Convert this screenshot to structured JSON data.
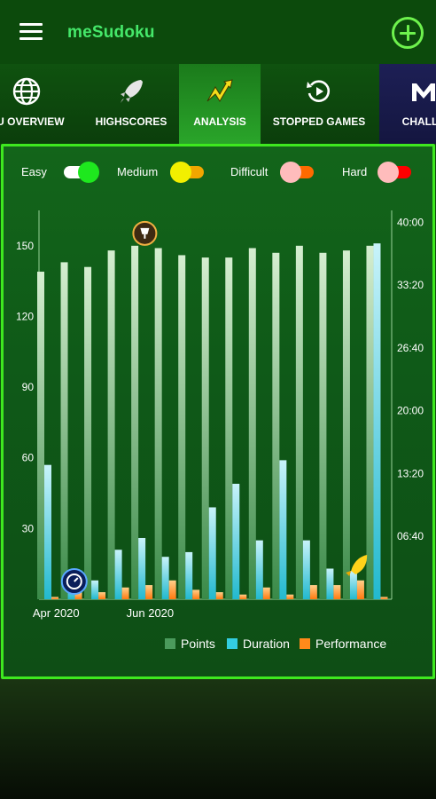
{
  "app": {
    "title": "meSudoku",
    "menu_icon": "hamburger-menu-icon",
    "add_icon": "plus-circle-icon"
  },
  "tabs": [
    {
      "label": "KU OVERVIEW",
      "icon": "globe-icon"
    },
    {
      "label": "HIGHSCORES",
      "icon": "rocket-icon"
    },
    {
      "label": "ANALYSIS",
      "icon": "lightning-chart-icon",
      "active": true
    },
    {
      "label": "STOPPED GAMES",
      "icon": "replay-icon"
    },
    {
      "label": "CHALLE",
      "icon": "challenge-icon"
    }
  ],
  "filters": [
    {
      "label": "Easy",
      "on": true,
      "track_color": "#ffffff",
      "knob_color": "#1ee81e"
    },
    {
      "label": "Medium",
      "on": true,
      "track_color": "#f1a600",
      "knob_color": "#f2ef00"
    },
    {
      "label": "Difficult",
      "on": false,
      "track_color": "#ff6a00",
      "knob_color": "#ffbcbc"
    },
    {
      "label": "Hard",
      "on": false,
      "track_color": "#ff0000",
      "knob_color": "#ffbcbc"
    }
  ],
  "chart_data": {
    "type": "bar",
    "categories": [
      "1",
      "2",
      "3",
      "4",
      "5",
      "6",
      "7",
      "8",
      "9",
      "10",
      "11",
      "12",
      "13",
      "14",
      "15"
    ],
    "x_tick_labels": [
      {
        "index": 1,
        "label": "Apr 2020"
      },
      {
        "index": 5,
        "label": "Jun 2020"
      }
    ],
    "y_left": {
      "ticks": [
        30,
        60,
        90,
        120,
        150
      ],
      "range": [
        0,
        165
      ]
    },
    "y_right": {
      "ticks": [
        "06:40",
        "13:20",
        "20:00",
        "26:40",
        "33:20",
        "40:00"
      ],
      "tick_values_seconds": [
        400,
        800,
        1200,
        1600,
        2000,
        2400
      ],
      "range_seconds": [
        0,
        2475
      ]
    },
    "series": [
      {
        "name": "Points",
        "axis": "left",
        "color": "#4b9a5c",
        "values": [
          139,
          143,
          141,
          148,
          150,
          149,
          146,
          145,
          145,
          149,
          147,
          150,
          147,
          148,
          150
        ]
      },
      {
        "name": "Duration",
        "axis": "left",
        "color": "#33cde0",
        "values": [
          57,
          9,
          8,
          21,
          26,
          18,
          20,
          39,
          49,
          25,
          59,
          25,
          13,
          12,
          151
        ]
      },
      {
        "name": "Performance",
        "axis": "left",
        "color": "#ff8a1a",
        "values": [
          1,
          3,
          3,
          5,
          6,
          8,
          4,
          3,
          2,
          5,
          2,
          6,
          6,
          8,
          1
        ]
      }
    ],
    "markers": [
      {
        "icon": "stopwatch-icon",
        "index": 2
      },
      {
        "icon": "trophy-icon",
        "index": 5
      },
      {
        "icon": "rocket-marker-icon",
        "index": 14
      }
    ]
  }
}
